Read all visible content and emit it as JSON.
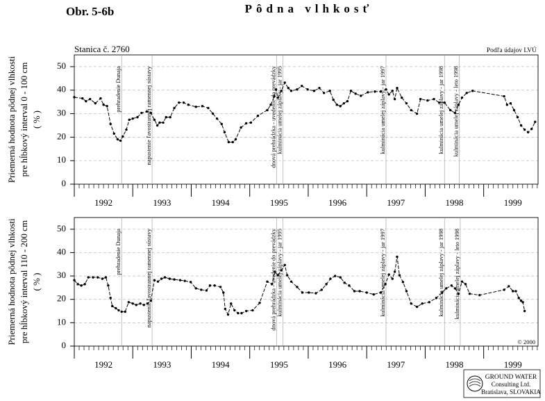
{
  "figure": "Obr. 5-6b",
  "title": "Pôdna vlhkosť",
  "logo": [
    "GROUND WATER",
    "Consulting Ltd.",
    "Bratislava, SLOVAKIA"
  ],
  "chart_data": [
    {
      "type": "line",
      "station": "Stanica č. 2760",
      "source": "Podľa údajov LVÚ",
      "ylabel": [
        "Priemerná hodnota pôdnej vlhkosti",
        "pre hĺbkový interval 0 - 100 cm",
        "( % )"
      ],
      "xlim": [
        1992,
        1999.93
      ],
      "xticks": [
        1992,
        1993,
        1994,
        1995,
        1996,
        1997,
        1998,
        1999
      ],
      "ylim": [
        0,
        55
      ],
      "yticks": [
        0,
        10,
        20,
        30,
        40,
        50
      ],
      "grid": true,
      "color": "#000000",
      "annotations": [
        {
          "x": 1992.81,
          "text": "prehradenie Dunaja"
        },
        {
          "x": 1993.33,
          "text": "napustenie ľavostrannej ramennej sústavy"
        },
        {
          "x": 1995.46,
          "text": "dnová prehrádzka - uvedenie do prevádzky"
        },
        {
          "x": 1995.57,
          "text": "kulminácia umelej záplavy - jar 1995"
        },
        {
          "x": 1997.33,
          "text": "kulminácia umelej záplavy - jar 1997"
        },
        {
          "x": 1998.33,
          "text": "kulminácia umelej záplavy - jar 1998"
        },
        {
          "x": 1998.58,
          "text": "kulminácia umelej záplavy - leto 1998"
        }
      ],
      "x": [
        1992.0,
        1992.14,
        1992.2,
        1992.27,
        1992.36,
        1992.45,
        1992.5,
        1992.56,
        1992.62,
        1992.68,
        1992.74,
        1992.79,
        1992.83,
        1992.89,
        1992.94,
        1993.0,
        1993.08,
        1993.15,
        1993.24,
        1993.31,
        1993.37,
        1993.42,
        1993.46,
        1993.52,
        1993.57,
        1993.64,
        1993.71,
        1993.79,
        1993.87,
        1993.95,
        1994.08,
        1994.19,
        1994.29,
        1994.37,
        1994.44,
        1994.52,
        1994.57,
        1994.64,
        1994.71,
        1994.76,
        1994.85,
        1994.94,
        1995.02,
        1995.14,
        1995.3,
        1995.36,
        1995.42,
        1995.45,
        1995.48,
        1995.54,
        1995.6,
        1995.66,
        1995.71,
        1995.81,
        1995.89,
        1995.99,
        1996.1,
        1996.19,
        1996.27,
        1996.37,
        1996.43,
        1996.49,
        1996.55,
        1996.61,
        1996.67,
        1996.73,
        1996.81,
        1996.9,
        1997.02,
        1997.14,
        1997.24,
        1997.33,
        1997.38,
        1997.44,
        1997.48,
        1997.52,
        1997.6,
        1997.68,
        1997.76,
        1997.86,
        1997.92,
        1998.04,
        1998.15,
        1998.24,
        1998.33,
        1998.43,
        1998.51,
        1998.57,
        1998.63,
        1998.71,
        1998.81,
        1999.35,
        1999.4,
        1999.46,
        1999.52,
        1999.58,
        1999.64,
        1999.7,
        1999.76,
        1999.82,
        1999.88
      ],
      "values": [
        37.0,
        36.5,
        35.3,
        36.2,
        34.4,
        36.5,
        33.8,
        33.2,
        25.6,
        21.5,
        19.1,
        18.5,
        20.3,
        23.2,
        27.4,
        27.9,
        28.5,
        30.3,
        30.9,
        30.3,
        27.4,
        25.0,
        26.2,
        26.2,
        28.5,
        28.5,
        32.4,
        34.7,
        34.7,
        33.8,
        32.9,
        33.2,
        32.4,
        30.0,
        27.9,
        25.6,
        22.1,
        17.9,
        17.9,
        19.1,
        24.1,
        25.9,
        26.2,
        29.1,
        31.5,
        33.8,
        37.4,
        40.3,
        36.8,
        39.7,
        43.2,
        40.9,
        39.7,
        40.3,
        41.8,
        40.3,
        39.7,
        40.9,
        38.8,
        39.7,
        35.9,
        33.8,
        33.2,
        34.4,
        35.3,
        39.7,
        38.5,
        37.6,
        39.1,
        39.4,
        39.4,
        40.3,
        38.2,
        39.7,
        36.2,
        40.9,
        36.8,
        34.4,
        31.5,
        30.0,
        36.2,
        35.6,
        36.2,
        34.7,
        34.7,
        31.5,
        30.3,
        33.8,
        36.8,
        38.8,
        39.7,
        37.4,
        33.8,
        34.4,
        31.5,
        28.5,
        25.0,
        23.2,
        22.1,
        23.5,
        26.5
      ]
    },
    {
      "type": "line",
      "copyright": "© 2000",
      "ylabel": [
        "Priemerná hodnota pôdnej vlhkosti",
        "pre hĺbkový interval 110 - 200 cm",
        "( % )"
      ],
      "xlim": [
        1992,
        1999.93
      ],
      "xticks": [
        1992,
        1993,
        1994,
        1995,
        1996,
        1997,
        1998,
        1999
      ],
      "ylim": [
        0,
        55
      ],
      "yticks": [
        0,
        10,
        20,
        30,
        40,
        50
      ],
      "grid": true,
      "color": "#000000",
      "annotations": [
        {
          "x": 1992.81,
          "text": "prehradenie Dunaja"
        },
        {
          "x": 1993.33,
          "text": "napustenie ľavostrannej ramennej sústavy"
        },
        {
          "x": 1995.46,
          "text": "dnová prehrádzka - uvedenie do prevádzky"
        },
        {
          "x": 1995.57,
          "text": "kulminácia umelej záplavy - jar 1995"
        },
        {
          "x": 1997.33,
          "text": "kulminácia umelej záplavy - jar 1997"
        },
        {
          "x": 1998.33,
          "text": "kulminácia umelej záplavy - jar 1998"
        },
        {
          "x": 1998.6,
          "text": "kulminácia umelej záplavy - leto 1998"
        }
      ],
      "x": [
        1992.0,
        1992.06,
        1992.12,
        1992.18,
        1992.24,
        1992.32,
        1992.4,
        1992.48,
        1992.54,
        1992.58,
        1992.62,
        1992.65,
        1992.71,
        1992.76,
        1992.81,
        1992.87,
        1992.93,
        1993.0,
        1993.06,
        1993.13,
        1993.19,
        1993.25,
        1993.31,
        1993.37,
        1993.43,
        1993.49,
        1993.55,
        1993.63,
        1993.71,
        1993.81,
        1993.89,
        1993.99,
        1994.08,
        1994.17,
        1994.26,
        1994.32,
        1994.4,
        1994.5,
        1994.55,
        1994.58,
        1994.63,
        1994.68,
        1994.74,
        1994.8,
        1994.86,
        1994.94,
        1995.05,
        1995.17,
        1995.3,
        1995.38,
        1995.43,
        1995.48,
        1995.54,
        1995.6,
        1995.64,
        1995.71,
        1995.81,
        1995.9,
        1996.01,
        1996.13,
        1996.23,
        1996.31,
        1996.38,
        1996.46,
        1996.55,
        1996.62,
        1996.7,
        1996.79,
        1996.88,
        1997.0,
        1997.12,
        1997.24,
        1997.32,
        1997.38,
        1997.44,
        1997.48,
        1997.52,
        1997.56,
        1997.62,
        1997.68,
        1997.76,
        1997.86,
        1997.95,
        1998.07,
        1998.19,
        1998.29,
        1998.36,
        1998.45,
        1998.51,
        1998.57,
        1998.63,
        1998.69,
        1998.76,
        1998.93,
        1999.35,
        1999.43,
        1999.5,
        1999.55,
        1999.6,
        1999.64,
        1999.67,
        1999.7
      ],
      "values": [
        28.2,
        26.5,
        25.9,
        26.5,
        29.4,
        29.4,
        29.4,
        28.8,
        29.4,
        25.9,
        20.6,
        17.1,
        16.2,
        15.3,
        14.7,
        14.7,
        18.8,
        18.2,
        17.6,
        18.2,
        17.6,
        18.2,
        19.4,
        28.2,
        27.6,
        28.8,
        29.4,
        28.8,
        28.5,
        28.2,
        27.9,
        27.4,
        24.7,
        24.1,
        23.8,
        25.9,
        25.9,
        25.3,
        22.9,
        15.9,
        13.5,
        18.2,
        15.3,
        14.1,
        14.1,
        15.0,
        15.3,
        18.5,
        27.6,
        26.5,
        31.8,
        30.3,
        32.4,
        34.7,
        30.3,
        27.6,
        25.3,
        22.9,
        22.9,
        22.6,
        24.1,
        26.5,
        28.8,
        30.0,
        29.4,
        27.1,
        25.9,
        23.5,
        23.5,
        22.9,
        22.1,
        22.9,
        26.5,
        30.6,
        28.8,
        31.8,
        38.2,
        30.3,
        27.4,
        23.5,
        18.2,
        16.8,
        18.2,
        18.8,
        20.6,
        22.9,
        24.7,
        25.9,
        24.7,
        22.4,
        27.6,
        26.5,
        22.4,
        21.8,
        24.1,
        25.6,
        23.5,
        23.5,
        20.6,
        19.4,
        18.8,
        15.0
      ]
    }
  ]
}
